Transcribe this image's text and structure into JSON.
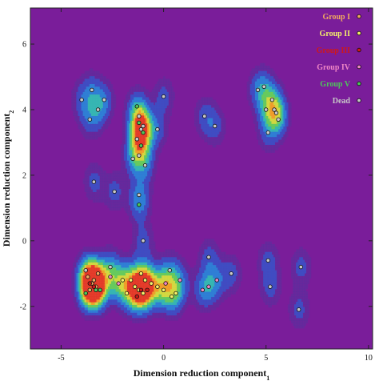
{
  "chart_data": {
    "type": "scatter",
    "subtype": "density contour scatter",
    "xlabel": "Dimension reduction component",
    "xlabel_subscript": "1",
    "ylabel": "Dimension reduction component",
    "ylabel_subscript": "2",
    "xlim": [
      -6.5,
      10.2
    ],
    "ylim": [
      -3.3,
      7.1
    ],
    "x_ticks": [
      -5,
      0,
      5,
      10
    ],
    "y_ticks": [
      -2,
      0,
      2,
      4,
      6
    ],
    "background_color": "#7a1d9a",
    "legend_position": "top-right",
    "series": [
      {
        "name": "Group I",
        "color": "#f0a860",
        "points": [
          [
            -3.5,
            -1.3
          ],
          [
            -3.3,
            -1.4
          ],
          [
            -3.7,
            -1.1
          ],
          [
            -3.4,
            -1.2
          ],
          [
            -3.6,
            -1.5
          ],
          [
            -3.2,
            -1.0
          ]
        ]
      },
      {
        "name": "Group II",
        "color": "#f4f06a",
        "points": [
          [
            -1.2,
            -1.5
          ],
          [
            -1.0,
            -1.6
          ],
          [
            -1.4,
            -1.4
          ],
          [
            -0.9,
            -1.2
          ],
          [
            -1.1,
            -1.0
          ],
          [
            -0.3,
            -1.4
          ],
          [
            0.0,
            -1.5
          ],
          [
            -0.6,
            -1.3
          ],
          [
            -1.6,
            -1.2
          ],
          [
            0.4,
            -1.7
          ],
          [
            0.6,
            -1.6
          ],
          [
            -2.0,
            -1.2
          ],
          [
            -1.8,
            -1.6
          ]
        ]
      },
      {
        "name": "Group III",
        "color": "#d01818",
        "points": [
          [
            -3.4,
            -1.4
          ],
          [
            -1.1,
            -1.5
          ],
          [
            -1.3,
            -1.7
          ],
          [
            -0.8,
            -1.5
          ],
          [
            -3.6,
            -1.3
          ]
        ]
      },
      {
        "name": "Group IV",
        "color": "#ef86c6",
        "points": [
          [
            -2.2,
            -1.3
          ],
          [
            -2.6,
            -1.1
          ],
          [
            0.1,
            -1.3
          ],
          [
            2.2,
            -1.4
          ],
          [
            1.9,
            -1.5
          ],
          [
            2.6,
            -1.2
          ],
          [
            0.8,
            -1.2
          ]
        ]
      },
      {
        "name": "Group V",
        "color": "#4ec85a",
        "points": [
          [
            -3.3,
            -1.5
          ],
          [
            -3.8,
            -1.6
          ],
          [
            -3.1,
            -1.5
          ],
          [
            -1.2,
            3.6
          ],
          [
            -1.0,
            3.3
          ],
          [
            -1.1,
            2.9
          ],
          [
            -1.3,
            4.1
          ],
          [
            -1.2,
            1.1
          ]
        ]
      },
      {
        "name": "Dead",
        "color": "#c8c8c8",
        "points": [
          [
            -4.0,
            4.3
          ],
          [
            -3.5,
            4.6
          ],
          [
            -3.2,
            4.0
          ],
          [
            -2.9,
            4.3
          ],
          [
            -3.6,
            3.7
          ],
          [
            -3.4,
            1.8
          ],
          [
            -2.4,
            1.5
          ],
          [
            -1.2,
            3.8
          ],
          [
            -1.1,
            3.4
          ],
          [
            -1.3,
            3.1
          ],
          [
            -1.0,
            3.5
          ],
          [
            -1.2,
            2.6
          ],
          [
            -1.2,
            1.4
          ],
          [
            -1.5,
            2.5
          ],
          [
            -0.9,
            2.3
          ],
          [
            2.0,
            3.8
          ],
          [
            2.5,
            3.5
          ],
          [
            0.0,
            4.4
          ],
          [
            -0.3,
            3.4
          ],
          [
            -1.0,
            0.0
          ],
          [
            0.3,
            -0.9
          ],
          [
            -2.6,
            -0.8
          ],
          [
            -3.8,
            -0.9
          ],
          [
            4.6,
            4.6
          ],
          [
            4.9,
            4.7
          ],
          [
            5.0,
            4.0
          ],
          [
            5.3,
            4.3
          ],
          [
            5.5,
            3.9
          ],
          [
            5.6,
            3.7
          ],
          [
            5.4,
            4.0
          ],
          [
            5.1,
            3.3
          ],
          [
            5.1,
            -0.6
          ],
          [
            5.2,
            -1.4
          ],
          [
            6.6,
            -2.1
          ],
          [
            6.7,
            -0.8
          ],
          [
            3.3,
            -1.0
          ],
          [
            2.2,
            -0.5
          ]
        ]
      }
    ]
  }
}
